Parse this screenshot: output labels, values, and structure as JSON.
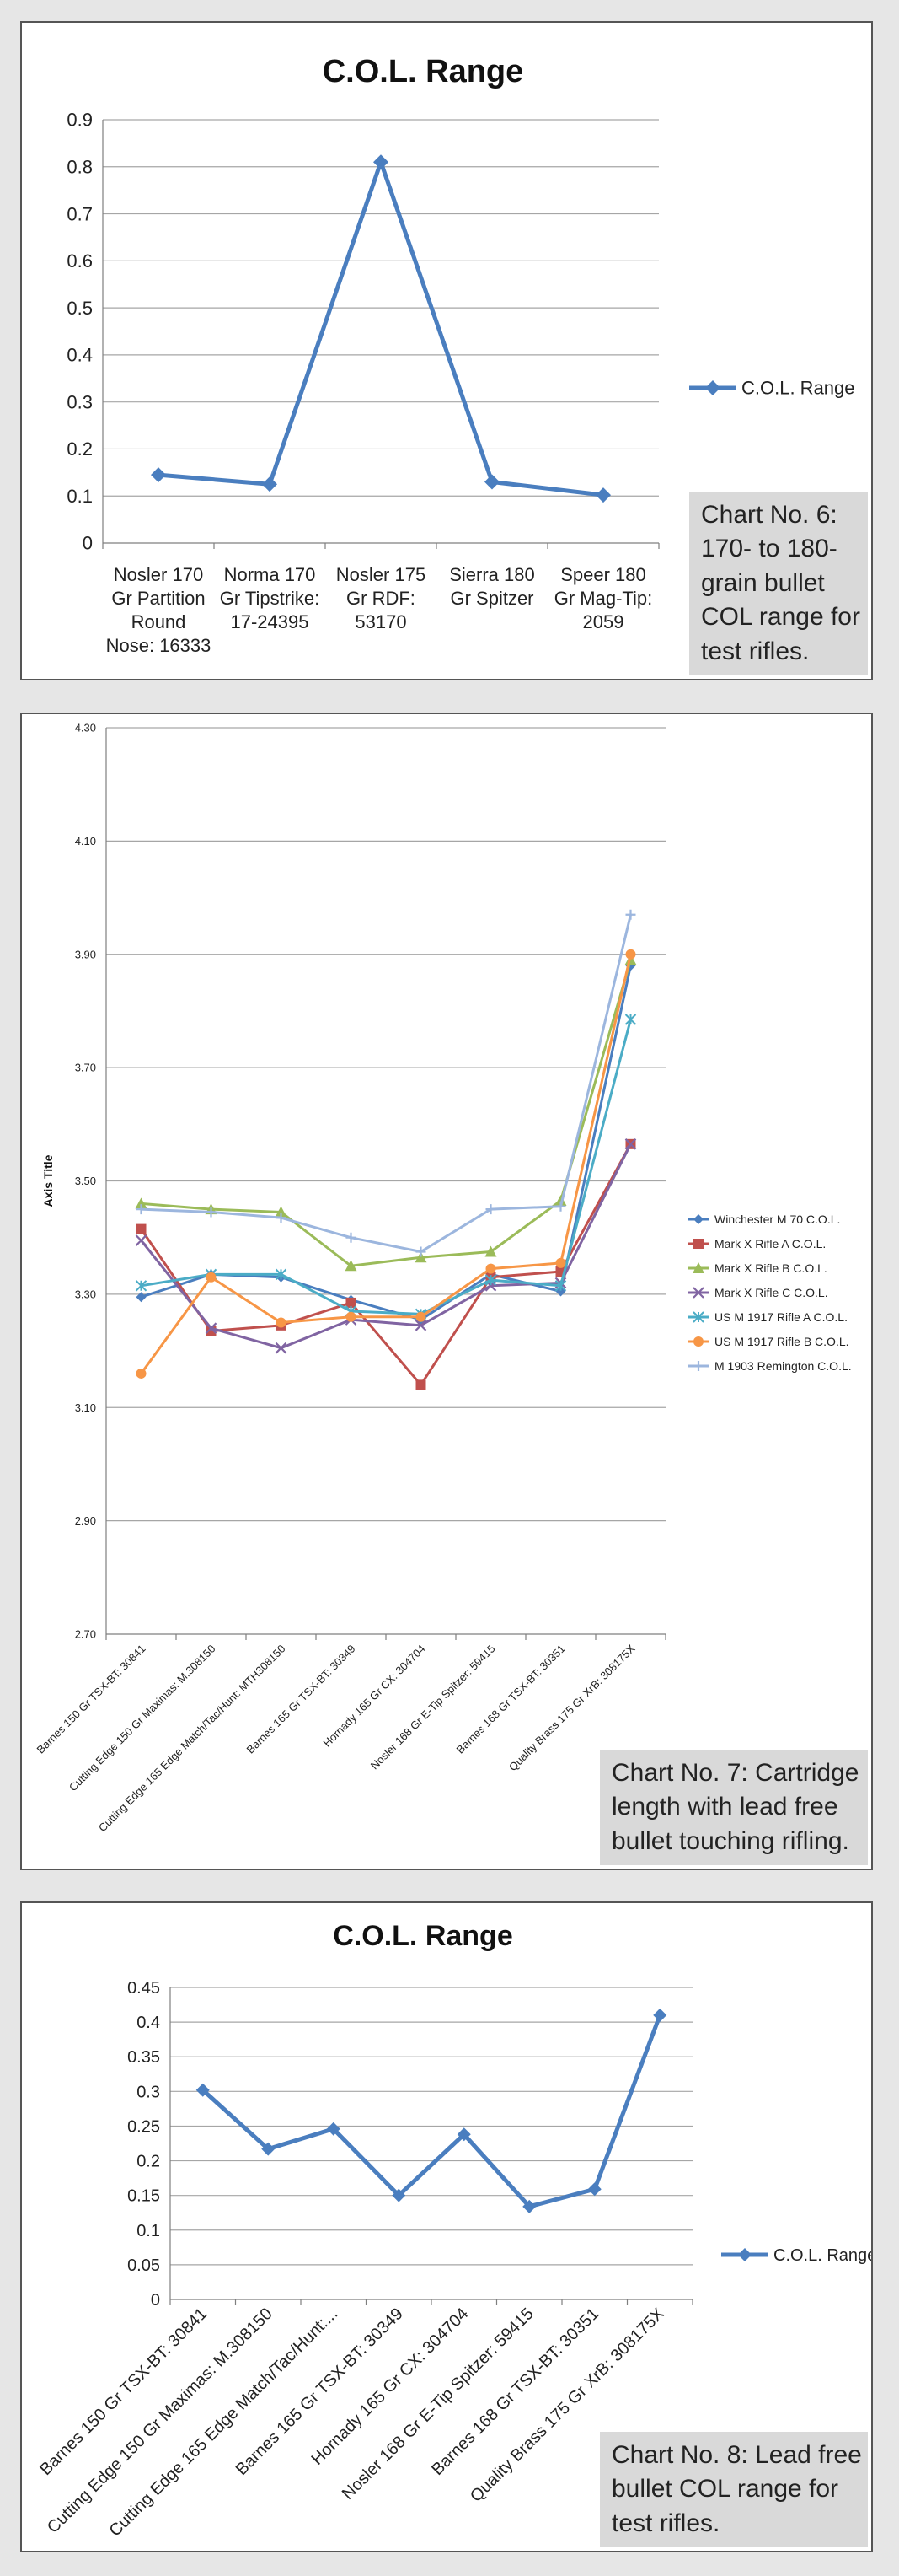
{
  "charts": [
    {
      "type": "line",
      "title": "C.O.L. Range",
      "ylabel": "",
      "ylim": [
        0,
        0.9
      ],
      "yticks": [
        "0",
        "0.1",
        "0.2",
        "0.3",
        "0.4",
        "0.5",
        "0.6",
        "0.7",
        "0.8",
        "0.9"
      ],
      "categories": [
        "Nosler 170 Gr Partition Round Nose: 16333",
        "Norma 170 Gr Tipstrike: 17-24395",
        "Nosler 175 Gr RDF: 53170",
        "Sierra 180 Gr Spitzer",
        "Speer 180 Gr Mag-Tip: 2059"
      ],
      "category_lines": [
        [
          "Nosler 170",
          "Gr Partition",
          "Round",
          "Nose: 16333"
        ],
        [
          "Norma 170",
          "Gr Tipstrike:",
          "17-24395"
        ],
        [
          "Nosler 175",
          "Gr RDF:",
          "53170"
        ],
        [
          "Sierra 180",
          "Gr Spitzer"
        ],
        [
          "Speer 180",
          "Gr Mag-Tip:",
          "2059"
        ]
      ],
      "series": [
        {
          "name": "C.O.L. Range",
          "color": "#4a7ebf",
          "values": [
            0.145,
            0.125,
            0.81,
            0.13,
            0.102
          ]
        }
      ],
      "legend_position": "right",
      "grid": true,
      "caption_lines": [
        "Chart No. 6:",
        "170- to 180-",
        "grain bullet",
        "COL range for",
        "test rifles."
      ]
    },
    {
      "type": "line",
      "title": "",
      "ylabel": "Axis Title",
      "ylim": [
        2.7,
        4.3
      ],
      "yticks": [
        "2.70",
        "2.90",
        "3.10",
        "3.30",
        "3.50",
        "3.70",
        "3.90",
        "4.10",
        "4.30"
      ],
      "categories": [
        "Barnes 150 Gr TSX-BT: 30841",
        "Cutting Edge 150 Gr Maximas: M.308150",
        "Cutting Edge 165 Edge Match/Tac/Hunt: MTH308150",
        "Barnes 165 Gr TSX-BT: 30349",
        "Hornady 165 Gr CX: 304704",
        "Nosler 168 Gr E-Tip Spitzer: 59415",
        "Barnes 168 Gr TSX-BT: 30351",
        "Quality Brass 175 Gr XrB: 308175X"
      ],
      "series": [
        {
          "name": "Winchester M 70 C.O.L.",
          "color": "#4a7ebf",
          "marker": "diamond",
          "values": [
            3.295,
            3.335,
            3.33,
            3.29,
            3.255,
            3.335,
            3.305,
            3.88
          ]
        },
        {
          "name": "Mark X Rifle A C.O.L.",
          "color": "#c0504d",
          "marker": "square",
          "values": [
            3.415,
            3.235,
            3.245,
            3.285,
            3.14,
            3.33,
            3.34,
            3.565
          ]
        },
        {
          "name": "Mark X  Rifle B C.O.L.",
          "color": "#9bbb59",
          "marker": "triangle",
          "values": [
            3.46,
            3.45,
            3.445,
            3.35,
            3.365,
            3.375,
            3.465,
            3.89
          ]
        },
        {
          "name": "Mark X Rifle C C.O.L.",
          "color": "#8064a2",
          "marker": "x",
          "values": [
            3.395,
            3.24,
            3.205,
            3.255,
            3.245,
            3.315,
            3.32,
            3.565
          ]
        },
        {
          "name": "US M 1917 Rifle A C.O.L.",
          "color": "#4bacc6",
          "marker": "star",
          "values": [
            3.315,
            3.335,
            3.335,
            3.27,
            3.265,
            3.325,
            3.315,
            3.785
          ]
        },
        {
          "name": "US M 1917 Rifle B C.O.L.",
          "color": "#f79646",
          "marker": "circle",
          "values": [
            3.16,
            3.33,
            3.25,
            3.26,
            3.26,
            3.345,
            3.355,
            3.9
          ]
        },
        {
          "name": "M 1903 Remington C.O.L.",
          "color": "#9cb6de",
          "marker": "plus",
          "values": [
            3.45,
            3.445,
            3.435,
            3.4,
            3.375,
            3.45,
            3.455,
            3.97
          ]
        }
      ],
      "legend_position": "right",
      "grid": true,
      "caption_lines": [
        "Chart No. 7: Cartridge",
        "length with lead free",
        "bullet touching rifling."
      ]
    },
    {
      "type": "line",
      "title": "C.O.L. Range",
      "ylabel": "",
      "ylim": [
        0,
        0.45
      ],
      "yticks": [
        "0",
        "0.05",
        "0.1",
        "0.15",
        "0.2",
        "0.25",
        "0.3",
        "0.35",
        "0.4",
        "0.45"
      ],
      "categories": [
        "Barnes 150 Gr TSX-BT: 30841",
        "Cutting Edge 150 Gr Maximas: M.308150",
        "Cutting Edge 165 Edge Match/Tac/Hunt:...",
        "Barnes 165 Gr TSX-BT: 30349",
        "Hornady 165 Gr CX: 304704",
        "Nosler 168 Gr E-Tip Spitzer: 59415",
        "Barnes 168 Gr TSX-BT: 30351",
        "Quality Brass 175 Gr XrB: 308175X"
      ],
      "series": [
        {
          "name": "C.O.L. Range",
          "color": "#4a7ebf",
          "values": [
            0.302,
            0.217,
            0.246,
            0.15,
            0.238,
            0.134,
            0.159,
            0.41
          ]
        }
      ],
      "legend_position": "right",
      "grid": true,
      "caption_lines": [
        "Chart No. 8: Lead free",
        "bullet COL range for",
        "test rifles."
      ]
    }
  ]
}
